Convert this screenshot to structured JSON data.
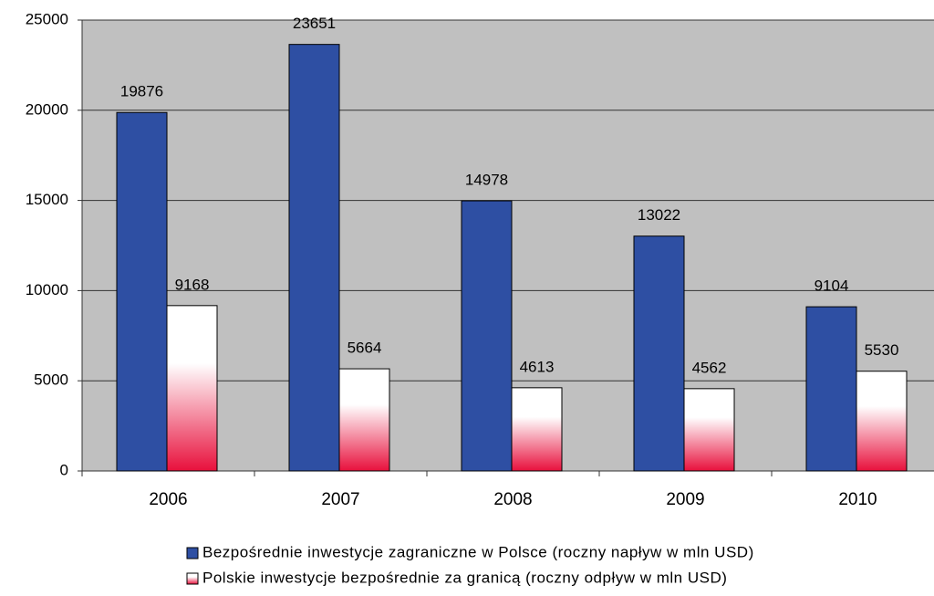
{
  "chart_data": {
    "type": "bar",
    "categories": [
      "2006",
      "2007",
      "2008",
      "2009",
      "2010"
    ],
    "series": [
      {
        "name": "Bezpośrednie inwestycje zagraniczne w Polsce (roczny napływ w mln USD)",
        "color": "#2e4fa3",
        "values": [
          19876,
          23651,
          14978,
          13022,
          9104
        ]
      },
      {
        "name": "Polskie inwestycje bezpośrednie za granicą (roczny odpływ w mln USD)",
        "color": "#e8103c",
        "values": [
          9168,
          5664,
          4613,
          4562,
          5530
        ]
      }
    ],
    "ylim": [
      0,
      25000
    ],
    "yticks": [
      0,
      5000,
      10000,
      15000,
      20000,
      25000
    ],
    "grid": true,
    "legend": "bottom"
  }
}
